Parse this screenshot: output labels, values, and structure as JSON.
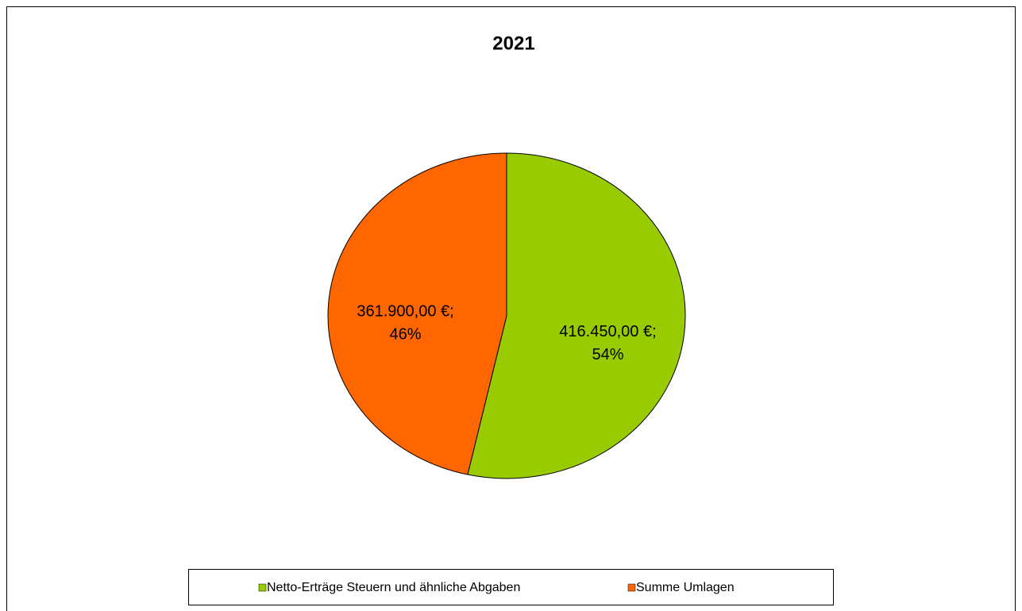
{
  "chart_data": {
    "type": "pie",
    "title": "2021",
    "categories": [
      "Netto-Erträge Steuern und ähnliche Abgaben",
      "Summe Umlagen"
    ],
    "values": [
      416450,
      361900
    ],
    "value_labels": [
      "416.450,00 €;",
      "361.900,00 €;"
    ],
    "percent_labels": [
      "54%",
      "46%"
    ],
    "colors": [
      "#99cc00",
      "#ff6600"
    ],
    "legend": "bottom"
  }
}
